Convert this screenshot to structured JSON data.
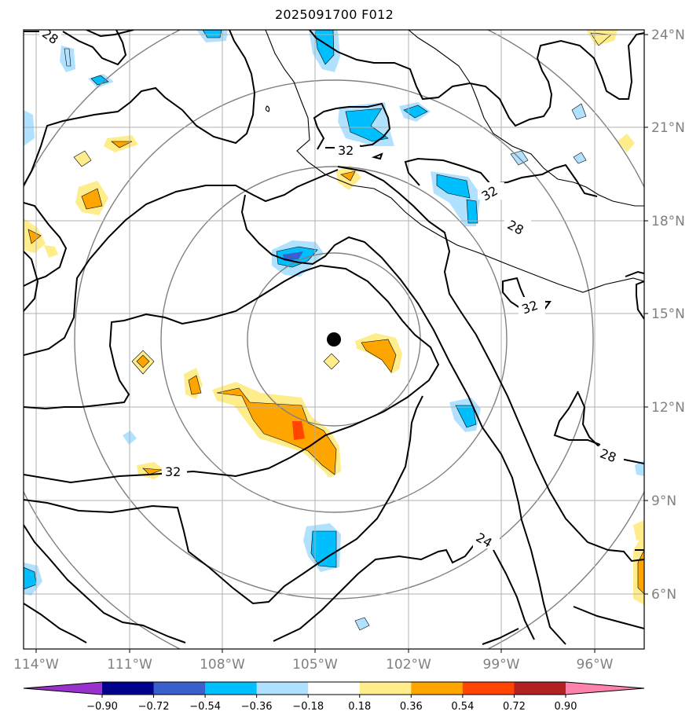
{
  "title": "2025091700 F012",
  "lat_labels": [
    "24°N",
    "21°N",
    "18°N",
    "15°N",
    "12°N",
    "9°N",
    "6°N"
  ],
  "lon_labels": [
    "114°W",
    "111°W",
    "108°W",
    "105°W",
    "102°W",
    "99°W",
    "96°W"
  ],
  "contour_labels": [
    "28",
    "32",
    "32",
    "28",
    "32",
    "32",
    "28",
    "24"
  ],
  "colorbar": {
    "ticks": [
      "−0.90",
      "−0.72",
      "−0.54",
      "−0.36",
      "−0.18",
      "0.18",
      "0.36",
      "0.54",
      "0.72",
      "0.90"
    ],
    "colors": [
      "#9932cc",
      "#00008b",
      "#3a5fcd",
      "#00bfff",
      "#b0e2ff",
      "#ffffff",
      "#ffec8b",
      "#ffa500",
      "#ff4500",
      "#b22222",
      "#ff82ab"
    ]
  },
  "fill_colors": {
    "light_blue": "#b0e2ff",
    "blue": "#00bfff",
    "mid_blue": "#3a5fcd",
    "light_yellow": "#ffec8b",
    "orange": "#ffa500",
    "red_orange": "#ff4500"
  },
  "center_marker": {
    "lat": 14.2,
    "lon": -104.5
  }
}
